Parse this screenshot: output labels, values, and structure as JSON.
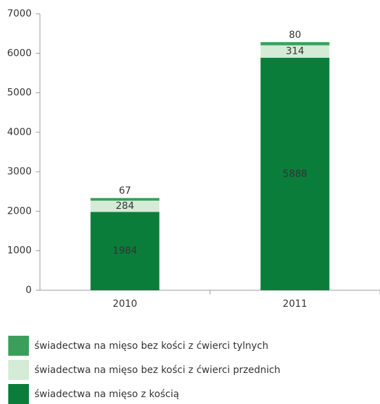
{
  "chart_data": {
    "type": "stacked_bar",
    "categories": [
      "2010",
      "2011"
    ],
    "series": [
      {
        "name": "świadectwa na mięso z kością",
        "color": "#0b7d3a",
        "values": [
          1984,
          5888
        ]
      },
      {
        "name": "świadectwa na mięso bez kości z ćwierci przednich",
        "color": "#d4ebd6",
        "values": [
          284,
          314
        ]
      },
      {
        "name": "świadectwa na mięso bez kości z ćwierci tylnych",
        "color": "#3b9f5b",
        "values": [
          67,
          80
        ]
      }
    ],
    "ylim": [
      0,
      7000
    ],
    "yticks": [
      0,
      1000,
      2000,
      3000,
      4000,
      5000,
      6000,
      7000
    ],
    "grid": false
  }
}
